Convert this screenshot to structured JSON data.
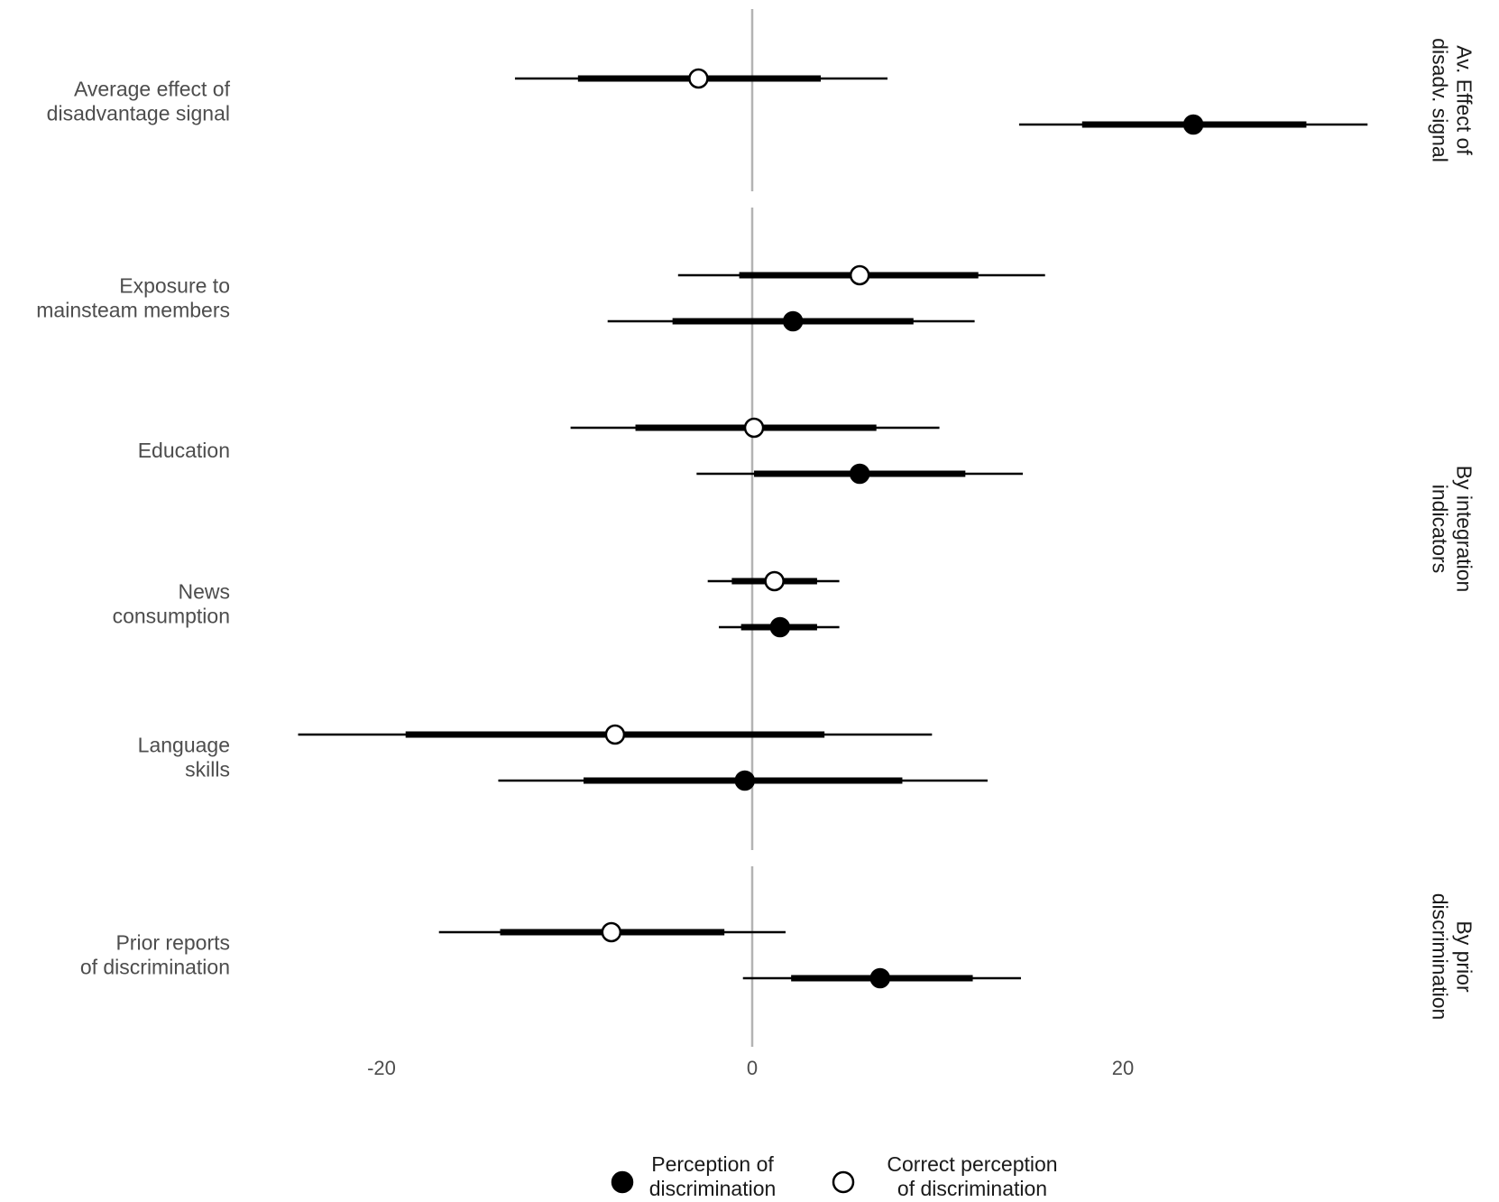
{
  "chart_data": {
    "type": "coefficient-plot",
    "x_axis": {
      "ticks": [
        -20,
        0,
        20
      ],
      "tick_labels": [
        "-20",
        "0",
        "20"
      ],
      "zero_line": true,
      "grid": false
    },
    "series": [
      {
        "key": "perception",
        "name": "Perception of discrimination",
        "label_lines": [
          "Perception of",
          "discrimination"
        ],
        "marker": "filled"
      },
      {
        "key": "correct",
        "name": "Correct perception of discrimination",
        "label_lines": [
          "Correct perception",
          "of discrimination"
        ],
        "marker": "open"
      }
    ],
    "panels": [
      {
        "name": "Av. Effect of disadv. signal",
        "label_lines": [
          "Av. Effect of",
          "disadv. signal"
        ],
        "rows": [
          {
            "label_lines": [
              "Average effect of",
              "disadvantage signal"
            ],
            "points": [
              {
                "series": "correct",
                "estimate": -2.9,
                "ci95": [
                  -12.8,
                  7.3
                ],
                "ci90": [
                  -9.4,
                  3.7
                ]
              },
              {
                "series": "perception",
                "estimate": 23.8,
                "ci95": [
                  14.4,
                  33.2
                ],
                "ci90": [
                  17.8,
                  29.9
                ]
              }
            ]
          }
        ]
      },
      {
        "name": "By integration indicators",
        "label_lines": [
          "By integration",
          "indicators"
        ],
        "rows": [
          {
            "label_lines": [
              "Exposure to",
              "mainsteam members"
            ],
            "points": [
              {
                "series": "correct",
                "estimate": 5.8,
                "ci95": [
                  -4.0,
                  15.8
                ],
                "ci90": [
                  -0.7,
                  12.2
                ]
              },
              {
                "series": "perception",
                "estimate": 2.2,
                "ci95": [
                  -7.8,
                  12.0
                ],
                "ci90": [
                  -4.3,
                  8.7
                ]
              }
            ]
          },
          {
            "label_lines": [
              "Education"
            ],
            "points": [
              {
                "series": "correct",
                "estimate": 0.1,
                "ci95": [
                  -9.8,
                  10.1
                ],
                "ci90": [
                  -6.3,
                  6.7
                ]
              },
              {
                "series": "perception",
                "estimate": 5.8,
                "ci95": [
                  -3.0,
                  14.6
                ],
                "ci90": [
                  0.1,
                  11.5
                ]
              }
            ]
          },
          {
            "label_lines": [
              "News",
              "consumption"
            ],
            "points": [
              {
                "series": "correct",
                "estimate": 1.2,
                "ci95": [
                  -2.4,
                  4.7
                ],
                "ci90": [
                  -1.1,
                  3.5
                ]
              },
              {
                "series": "perception",
                "estimate": 1.5,
                "ci95": [
                  -1.8,
                  4.7
                ],
                "ci90": [
                  -0.6,
                  3.5
                ]
              }
            ]
          },
          {
            "label_lines": [
              "Language",
              "skills"
            ],
            "points": [
              {
                "series": "correct",
                "estimate": -7.4,
                "ci95": [
                  -24.5,
                  9.7
                ],
                "ci90": [
                  -18.7,
                  3.9
                ]
              },
              {
                "series": "perception",
                "estimate": -0.4,
                "ci95": [
                  -13.7,
                  12.7
                ],
                "ci90": [
                  -9.1,
                  8.1
                ]
              }
            ]
          }
        ]
      },
      {
        "name": "By prior discrimination",
        "label_lines": [
          "By prior",
          "discrimination"
        ],
        "rows": [
          {
            "label_lines": [
              "Prior reports",
              "of discrimination"
            ],
            "points": [
              {
                "series": "correct",
                "estimate": -7.6,
                "ci95": [
                  -16.9,
                  1.8
                ],
                "ci90": [
                  -13.6,
                  -1.5
                ]
              },
              {
                "series": "perception",
                "estimate": 6.9,
                "ci95": [
                  -0.5,
                  14.5
                ],
                "ci90": [
                  2.1,
                  11.9
                ]
              }
            ]
          }
        ]
      }
    ]
  }
}
